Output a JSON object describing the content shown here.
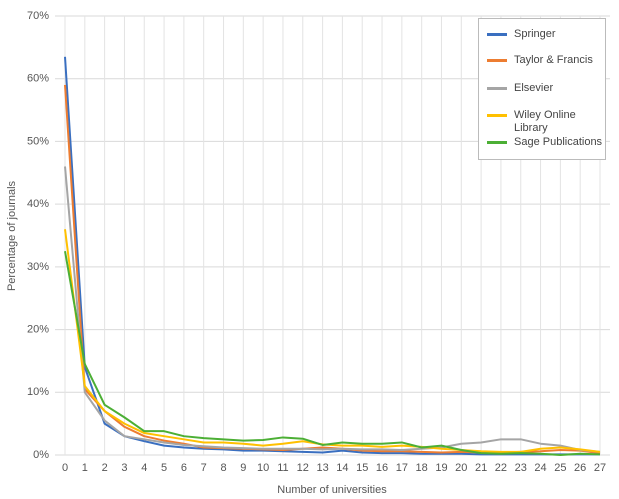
{
  "chart_data": {
    "type": "line",
    "x_label": "Number of universities",
    "y_label": "Percentage of journals",
    "categories": [
      "0",
      "1",
      "2",
      "3",
      "4",
      "5",
      "6",
      "7",
      "8",
      "9",
      "10",
      "11",
      "12",
      "13",
      "14",
      "15",
      "16",
      "17",
      "18",
      "19",
      "20",
      "21",
      "22",
      "23",
      "24",
      "25",
      "26",
      "27"
    ],
    "ylim": [
      0,
      70
    ],
    "yticks": [
      {
        "value": 0,
        "label": "0%"
      },
      {
        "value": 10,
        "label": "10%"
      },
      {
        "value": 20,
        "label": "20%"
      },
      {
        "value": 30,
        "label": "30%"
      },
      {
        "value": 40,
        "label": "40%"
      },
      {
        "value": 50,
        "label": "50%"
      },
      {
        "value": 60,
        "label": "60%"
      },
      {
        "value": 70,
        "label": "70%"
      }
    ],
    "grid": true,
    "legend": "top-right",
    "series": [
      {
        "name": "Springer",
        "color": "#3a6fc0",
        "values": [
          63.5,
          14,
          5,
          3,
          2.2,
          1.5,
          1.2,
          1,
          0.9,
          0.7,
          0.7,
          0.6,
          0.5,
          0.4,
          0.7,
          0.4,
          0.3,
          0.3,
          0.2,
          0.2,
          0.2,
          0.1,
          0.1,
          0.1,
          0.1,
          0.1,
          0.1,
          0.1
        ]
      },
      {
        "name": "Taylor & Francis",
        "color": "#ed7d31",
        "values": [
          59,
          10.5,
          7,
          4.5,
          3,
          2.3,
          1.8,
          1.2,
          1.1,
          1,
          0.9,
          0.8,
          1,
          1.2,
          1,
          0.7,
          0.6,
          0.6,
          0.5,
          0.4,
          0.5,
          0.4,
          0.4,
          0.5,
          0.6,
          0.8,
          0.7,
          0.3
        ]
      },
      {
        "name": "Elsevier",
        "color": "#a5a5a5",
        "values": [
          46,
          10,
          5.5,
          3,
          2.5,
          2,
          1.6,
          1.4,
          1.2,
          1.1,
          1,
          1,
          1,
          0.9,
          1,
          0.9,
          0.9,
          0.8,
          1,
          1.2,
          1.8,
          2,
          2.5,
          2.5,
          1.8,
          1.5,
          0.8,
          0.5
        ]
      },
      {
        "name": "Wiley Online Library",
        "color": "#ffc000",
        "values": [
          36,
          11,
          7,
          5,
          3.5,
          3,
          2.5,
          2,
          2,
          1.8,
          1.5,
          1.8,
          2.2,
          1.7,
          1.5,
          1.5,
          1.3,
          1.5,
          1.3,
          1,
          0.8,
          0.6,
          0.5,
          0.5,
          1,
          1.2,
          0.9,
          0.5
        ]
      },
      {
        "name": "Sage Publications",
        "color": "#4caf35",
        "values": [
          32.5,
          14.5,
          8,
          6,
          3.8,
          3.8,
          3,
          2.7,
          2.5,
          2.3,
          2.4,
          2.8,
          2.6,
          1.6,
          2,
          1.8,
          1.8,
          2,
          1.2,
          1.5,
          0.8,
          0.3,
          0.2,
          0.3,
          0.2,
          0,
          0.2,
          0.1
        ]
      }
    ]
  }
}
